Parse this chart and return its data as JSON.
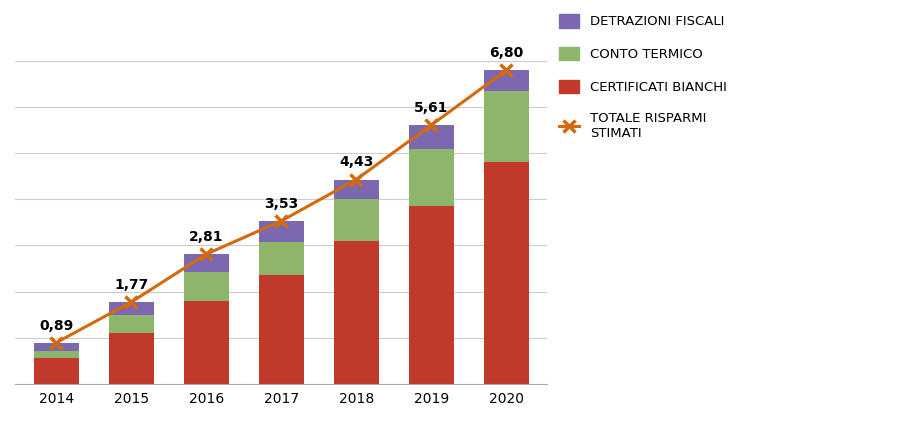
{
  "years": [
    2014,
    2015,
    2016,
    2017,
    2018,
    2019,
    2020
  ],
  "certificati_bianchi": [
    0.55,
    1.1,
    1.8,
    2.35,
    3.1,
    3.85,
    4.8
  ],
  "conto_termico": [
    0.15,
    0.38,
    0.62,
    0.73,
    0.9,
    1.25,
    1.55
  ],
  "detrazioni_fiscali": [
    0.19,
    0.29,
    0.39,
    0.45,
    0.43,
    0.51,
    0.45
  ],
  "totale_risparmi": [
    0.89,
    1.77,
    2.81,
    3.53,
    4.43,
    5.61,
    6.8
  ],
  "totale_labels": [
    "0,89",
    "1,77",
    "2,81",
    "3,53",
    "4,43",
    "5,61",
    "6,80"
  ],
  "color_certificati": "#c0392b",
  "color_conto": "#8db56b",
  "color_detrazioni": "#7b68b0",
  "color_line": "#d4690a",
  "legend_detrazioni": "DETRAZIONI FISCALI",
  "legend_conto": "CONTO TERMICO",
  "legend_certificati": "CERTIFICATI BIANCHI",
  "legend_totale": "TOTALE RISPARMI\nSTIMATI",
  "ylim": [
    0,
    8
  ],
  "bar_width": 0.6,
  "background_color": "#ffffff"
}
